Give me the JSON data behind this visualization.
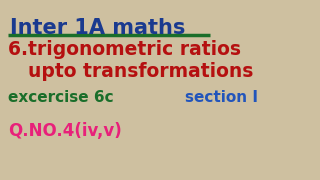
{
  "bg_color": "#cec0a0",
  "title_text": "Inter 1A maths",
  "title_color": "#1a3a8f",
  "underline_color": "#1a6e2a",
  "line1_text": "6.trigonometric ratios",
  "line2_text": "upto transformations",
  "red_color": "#b51010",
  "excercise_text": "excercise 6c",
  "green_color": "#1a6e2a",
  "section_text": "section I",
  "blue_color": "#2255bb",
  "qno_text": "Q.NO.4(iv,v)",
  "pink_color": "#e8207a",
  "title_fontsize": 15,
  "sub_fontsize": 13.5,
  "mid_fontsize": 11,
  "q_fontsize": 12
}
